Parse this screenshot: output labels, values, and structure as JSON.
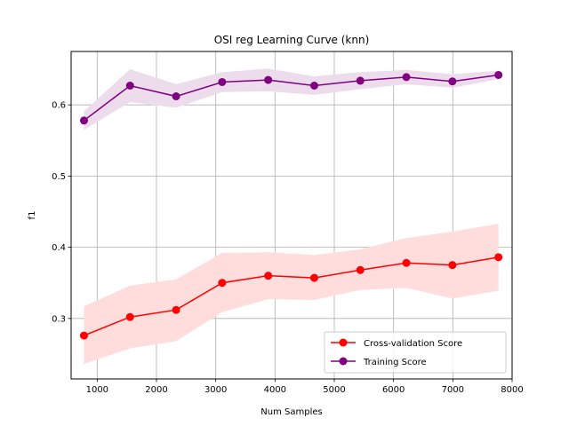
{
  "chart_data": {
    "type": "line",
    "title": "OSI reg Learning Curve (knn)",
    "xlabel": "Num Samples",
    "ylabel": "f1",
    "xlim": [
      560,
      8000
    ],
    "ylim": [
      0.215,
      0.675
    ],
    "xticks": [
      1000,
      2000,
      3000,
      4000,
      5000,
      6000,
      7000,
      8000
    ],
    "yticks": [
      0.3,
      0.4,
      0.5,
      0.6
    ],
    "ytick_labels": [
      "0.3",
      "0.4",
      "0.5",
      "0.6"
    ],
    "grid": true,
    "legend_position": "lower-right",
    "x": [
      777,
      1554,
      2331,
      3108,
      3885,
      4662,
      5439,
      6216,
      6993,
      7770
    ],
    "series": [
      {
        "name": "Cross-validation Score",
        "color": "#ff0000",
        "band_color": "#ffdddd",
        "values": [
          0.276,
          0.302,
          0.312,
          0.35,
          0.36,
          0.357,
          0.368,
          0.378,
          0.375,
          0.386
        ],
        "lower": [
          0.236,
          0.258,
          0.268,
          0.309,
          0.327,
          0.326,
          0.34,
          0.343,
          0.328,
          0.339
        ],
        "upper": [
          0.317,
          0.346,
          0.355,
          0.392,
          0.393,
          0.389,
          0.397,
          0.413,
          0.422,
          0.433
        ]
      },
      {
        "name": "Training Score",
        "color": "#800080",
        "band_color": "#ecdcec",
        "values": [
          0.578,
          0.627,
          0.612,
          0.632,
          0.635,
          0.627,
          0.634,
          0.639,
          0.633,
          0.642
        ],
        "lower": [
          0.565,
          0.604,
          0.596,
          0.618,
          0.619,
          0.614,
          0.622,
          0.629,
          0.624,
          0.636
        ],
        "upper": [
          0.591,
          0.65,
          0.629,
          0.646,
          0.651,
          0.64,
          0.646,
          0.649,
          0.643,
          0.648
        ]
      }
    ]
  }
}
